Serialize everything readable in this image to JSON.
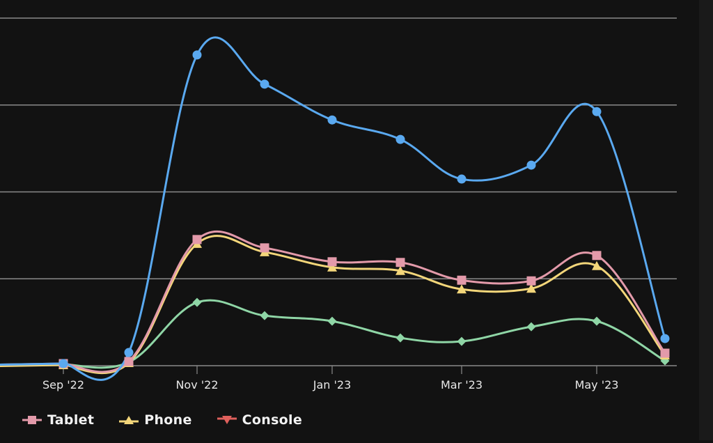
{
  "chart_data": {
    "type": "line",
    "title": "",
    "xlabel": "",
    "ylabel": "",
    "ylim": [
      0,
      100
    ],
    "y_gridlines": [
      0,
      25,
      50,
      75,
      100
    ],
    "y_tick_labels_visible": false,
    "grid": true,
    "legend_position": "bottom-left",
    "x": [
      "Sep '22",
      "Oct '22",
      "Nov '22",
      "Dec '22",
      "Jan '23",
      "Feb '23",
      "Mar '23",
      "Apr '23",
      "May '23",
      "Jun '23"
    ],
    "x_tick_labels": [
      "Sep '22",
      "Nov '22",
      "Jan '23",
      "Mar '23",
      "May '23"
    ],
    "series": [
      {
        "name": "(unlabeled blue)",
        "color": "#5aa9f0",
        "marker": "circle",
        "values": [
          0.6,
          3.8,
          89.4,
          81.0,
          70.7,
          65.1,
          53.7,
          57.7,
          73.1,
          7.8
        ]
      },
      {
        "name": "Tablet",
        "color": "#e39aaa",
        "marker": "square",
        "values": [
          0.6,
          1.2,
          36.3,
          33.9,
          29.9,
          29.7,
          24.6,
          24.4,
          31.7,
          3.6
        ]
      },
      {
        "name": "Phone",
        "color": "#f3d67a",
        "marker": "triangle-up",
        "values": [
          0.2,
          0.8,
          35.1,
          32.7,
          28.3,
          27.3,
          22.0,
          22.2,
          28.7,
          3.0
        ]
      },
      {
        "name": "(unlabeled green)",
        "color": "#8fd6a6",
        "marker": "diamond",
        "values": [
          0.4,
          1.0,
          18.2,
          14.4,
          12.8,
          8.0,
          7.0,
          11.2,
          12.8,
          1.4
        ]
      },
      {
        "name": "Console",
        "color": "#e0605c",
        "marker": "triangle-down",
        "values": []
      }
    ]
  },
  "legend": {
    "items": [
      {
        "label": "Tablet",
        "color": "#e39aaa",
        "icon": "square-marker-icon"
      },
      {
        "label": "Phone",
        "color": "#f3d67a",
        "icon": "triangle-up-marker-icon"
      },
      {
        "label": "Console",
        "color": "#e0605c",
        "icon": "triangle-down-marker-icon"
      }
    ]
  },
  "colors": {
    "background": "#121212",
    "gridline": "#8a8a8a",
    "axis_text": "#e8e8e8",
    "right_strip": "#1a1a1a"
  }
}
